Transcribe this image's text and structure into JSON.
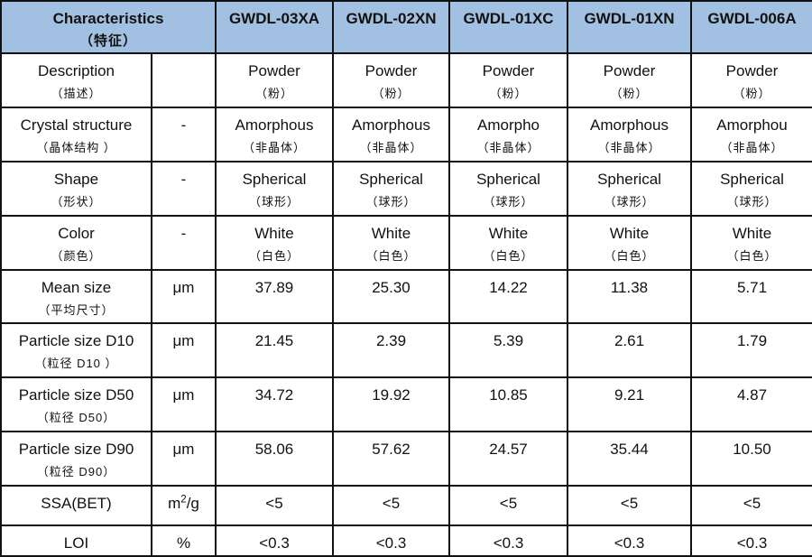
{
  "table": {
    "header": {
      "title_en": "Characteristics",
      "title_zh": "（特征）",
      "products": [
        "GWDL-03XA",
        "GWDL-02XN",
        "GWDL-01XC",
        "GWDL-01XN",
        "GWDL-006A"
      ]
    },
    "rows": [
      {
        "label_en": "Description",
        "label_zh": "（描述）",
        "unit": "",
        "values": [
          {
            "v": "Powder",
            "zh": "（粉）"
          },
          {
            "v": "Powder",
            "zh": "（粉）"
          },
          {
            "v": "Powder",
            "zh": "（粉）"
          },
          {
            "v": "Powder",
            "zh": "（粉）"
          },
          {
            "v": "Powder",
            "zh": "（粉）"
          }
        ]
      },
      {
        "label_en": "Crystal structure",
        "label_zh": "（晶体结构 ）",
        "unit": "-",
        "values": [
          {
            "v": "Amorphous",
            "zh": "（非晶体）"
          },
          {
            "v": "Amorphous",
            "zh": "（非晶体）"
          },
          {
            "v": "Amorpho",
            "zh": "（非晶体）"
          },
          {
            "v": "Amorphous",
            "zh": "（非晶体）"
          },
          {
            "v": "Amorphou",
            "zh": "（非晶体）"
          }
        ]
      },
      {
        "label_en": "Shape",
        "label_zh": "（形状）",
        "unit": "-",
        "values": [
          {
            "v": "Spherical",
            "zh": "（球形）"
          },
          {
            "v": "Spherical",
            "zh": "（球形）"
          },
          {
            "v": "Spherical",
            "zh": "（球形）"
          },
          {
            "v": "Spherical",
            "zh": "（球形）"
          },
          {
            "v": "Spherical",
            "zh": "（球形）"
          }
        ]
      },
      {
        "label_en": "Color",
        "label_zh": "（颜色）",
        "unit": "-",
        "values": [
          {
            "v": "White",
            "zh": "（白色）"
          },
          {
            "v": "White",
            "zh": "（白色）"
          },
          {
            "v": "White",
            "zh": "（白色）"
          },
          {
            "v": "White",
            "zh": "（白色）"
          },
          {
            "v": "White",
            "zh": "（白色）"
          }
        ]
      },
      {
        "label_en": "Mean size",
        "label_zh": "（平均尺寸）",
        "unit": "μm",
        "values": [
          {
            "v": "37.89",
            "zh": ""
          },
          {
            "v": "25.30",
            "zh": ""
          },
          {
            "v": "14.22",
            "zh": ""
          },
          {
            "v": "11.38",
            "zh": ""
          },
          {
            "v": "5.71",
            "zh": ""
          }
        ]
      },
      {
        "label_en": "Particle size D10",
        "label_zh": "（粒径 D10 ）",
        "unit": "μm",
        "values": [
          {
            "v": "21.45",
            "zh": ""
          },
          {
            "v": "2.39",
            "zh": ""
          },
          {
            "v": "5.39",
            "zh": ""
          },
          {
            "v": "2.61",
            "zh": ""
          },
          {
            "v": "1.79",
            "zh": ""
          }
        ]
      },
      {
        "label_en": "Particle size D50",
        "label_zh": "（粒径 D50）",
        "unit": "μm",
        "values": [
          {
            "v": "34.72",
            "zh": ""
          },
          {
            "v": "19.92",
            "zh": ""
          },
          {
            "v": "10.85",
            "zh": ""
          },
          {
            "v": "9.21",
            "zh": ""
          },
          {
            "v": "4.87",
            "zh": ""
          }
        ]
      },
      {
        "label_en": "Particle size D90",
        "label_zh": "（粒径 D90）",
        "unit": "μm",
        "values": [
          {
            "v": "58.06",
            "zh": ""
          },
          {
            "v": "57.62",
            "zh": ""
          },
          {
            "v": "24.57",
            "zh": ""
          },
          {
            "v": "35.44",
            "zh": ""
          },
          {
            "v": "10.50",
            "zh": ""
          }
        ]
      },
      {
        "label_en": "SSA(BET)",
        "label_zh": "",
        "unit": "m²/g",
        "values": [
          {
            "v": "<5",
            "zh": ""
          },
          {
            "v": "<5",
            "zh": ""
          },
          {
            "v": "<5",
            "zh": ""
          },
          {
            "v": "<5",
            "zh": ""
          },
          {
            "v": "<5",
            "zh": ""
          }
        ]
      },
      {
        "label_en": "LOI",
        "label_zh": "",
        "unit": "%",
        "values": [
          {
            "v": "<0.3",
            "zh": ""
          },
          {
            "v": "<0.3",
            "zh": ""
          },
          {
            "v": "<0.3",
            "zh": ""
          },
          {
            "v": "<0.3",
            "zh": ""
          },
          {
            "v": "<0.3",
            "zh": ""
          }
        ]
      }
    ]
  },
  "colors": {
    "header_bg": "#a2c0e1",
    "border": "#111111",
    "text": "#111111"
  }
}
